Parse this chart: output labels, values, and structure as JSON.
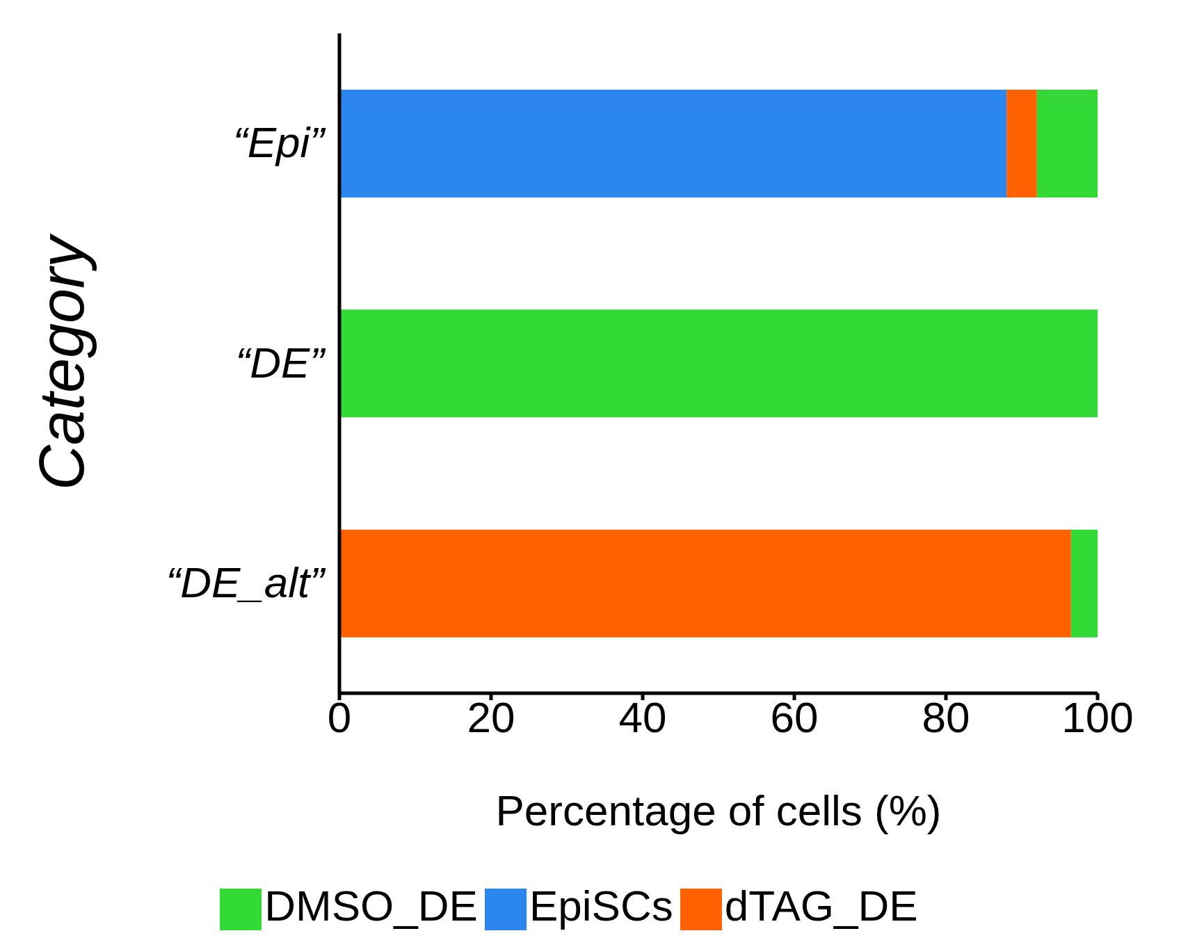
{
  "chart_data": {
    "type": "bar",
    "orientation": "horizontal",
    "stacked": true,
    "categories": [
      "“Epi”",
      "“DE”",
      "“DE_alt”"
    ],
    "series": [
      {
        "name": "EpiSCs",
        "color": "#2b86ee",
        "values": [
          88,
          0,
          0
        ]
      },
      {
        "name": "dTAG_DE",
        "color": "#fe6200",
        "values": [
          4,
          0,
          96.5
        ]
      },
      {
        "name": "DMSO_DE",
        "color": "#33d934",
        "values": [
          8,
          100,
          3.5
        ]
      }
    ],
    "xlabel": "Percentage of cells (%)",
    "ylabel": "Category",
    "xlim": [
      0,
      100
    ],
    "xticks": [
      0,
      20,
      40,
      60,
      80,
      100
    ],
    "grid": false,
    "legend": "bottom"
  }
}
